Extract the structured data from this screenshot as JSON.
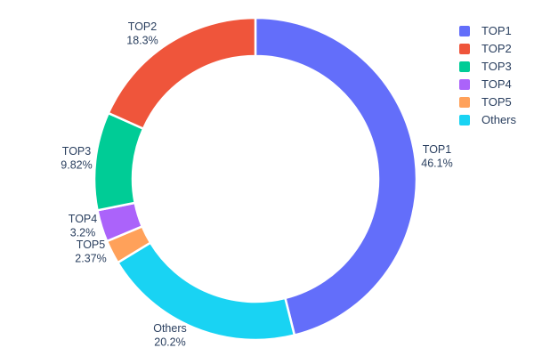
{
  "chart_data": {
    "type": "pie",
    "subtype": "donut",
    "title": "",
    "labels": [
      "TOP1",
      "TOP2",
      "TOP3",
      "TOP4",
      "TOP5",
      "Others"
    ],
    "values": [
      46.1,
      18.3,
      9.82,
      3.2,
      2.37,
      20.2
    ],
    "percent_labels": [
      "46.1%",
      "18.3%",
      "9.82%",
      "3.2%",
      "2.37%",
      "20.2%"
    ],
    "colors": [
      "#636efa",
      "#ef553b",
      "#00cc96",
      "#ab63fa",
      "#ffa15a",
      "#19d3f3"
    ],
    "hole_ratio": 0.76,
    "slice_border_color": "#ffffff",
    "text_color": "#2a3f5f",
    "start_angle_deg": 0,
    "clockwise_order_from_top": [
      "TOP1",
      "Others",
      "TOP5",
      "TOP4",
      "TOP3",
      "TOP2"
    ],
    "legend": {
      "position": "top-right",
      "entries": [
        "TOP1",
        "TOP2",
        "TOP3",
        "TOP4",
        "TOP5",
        "Others"
      ]
    }
  }
}
